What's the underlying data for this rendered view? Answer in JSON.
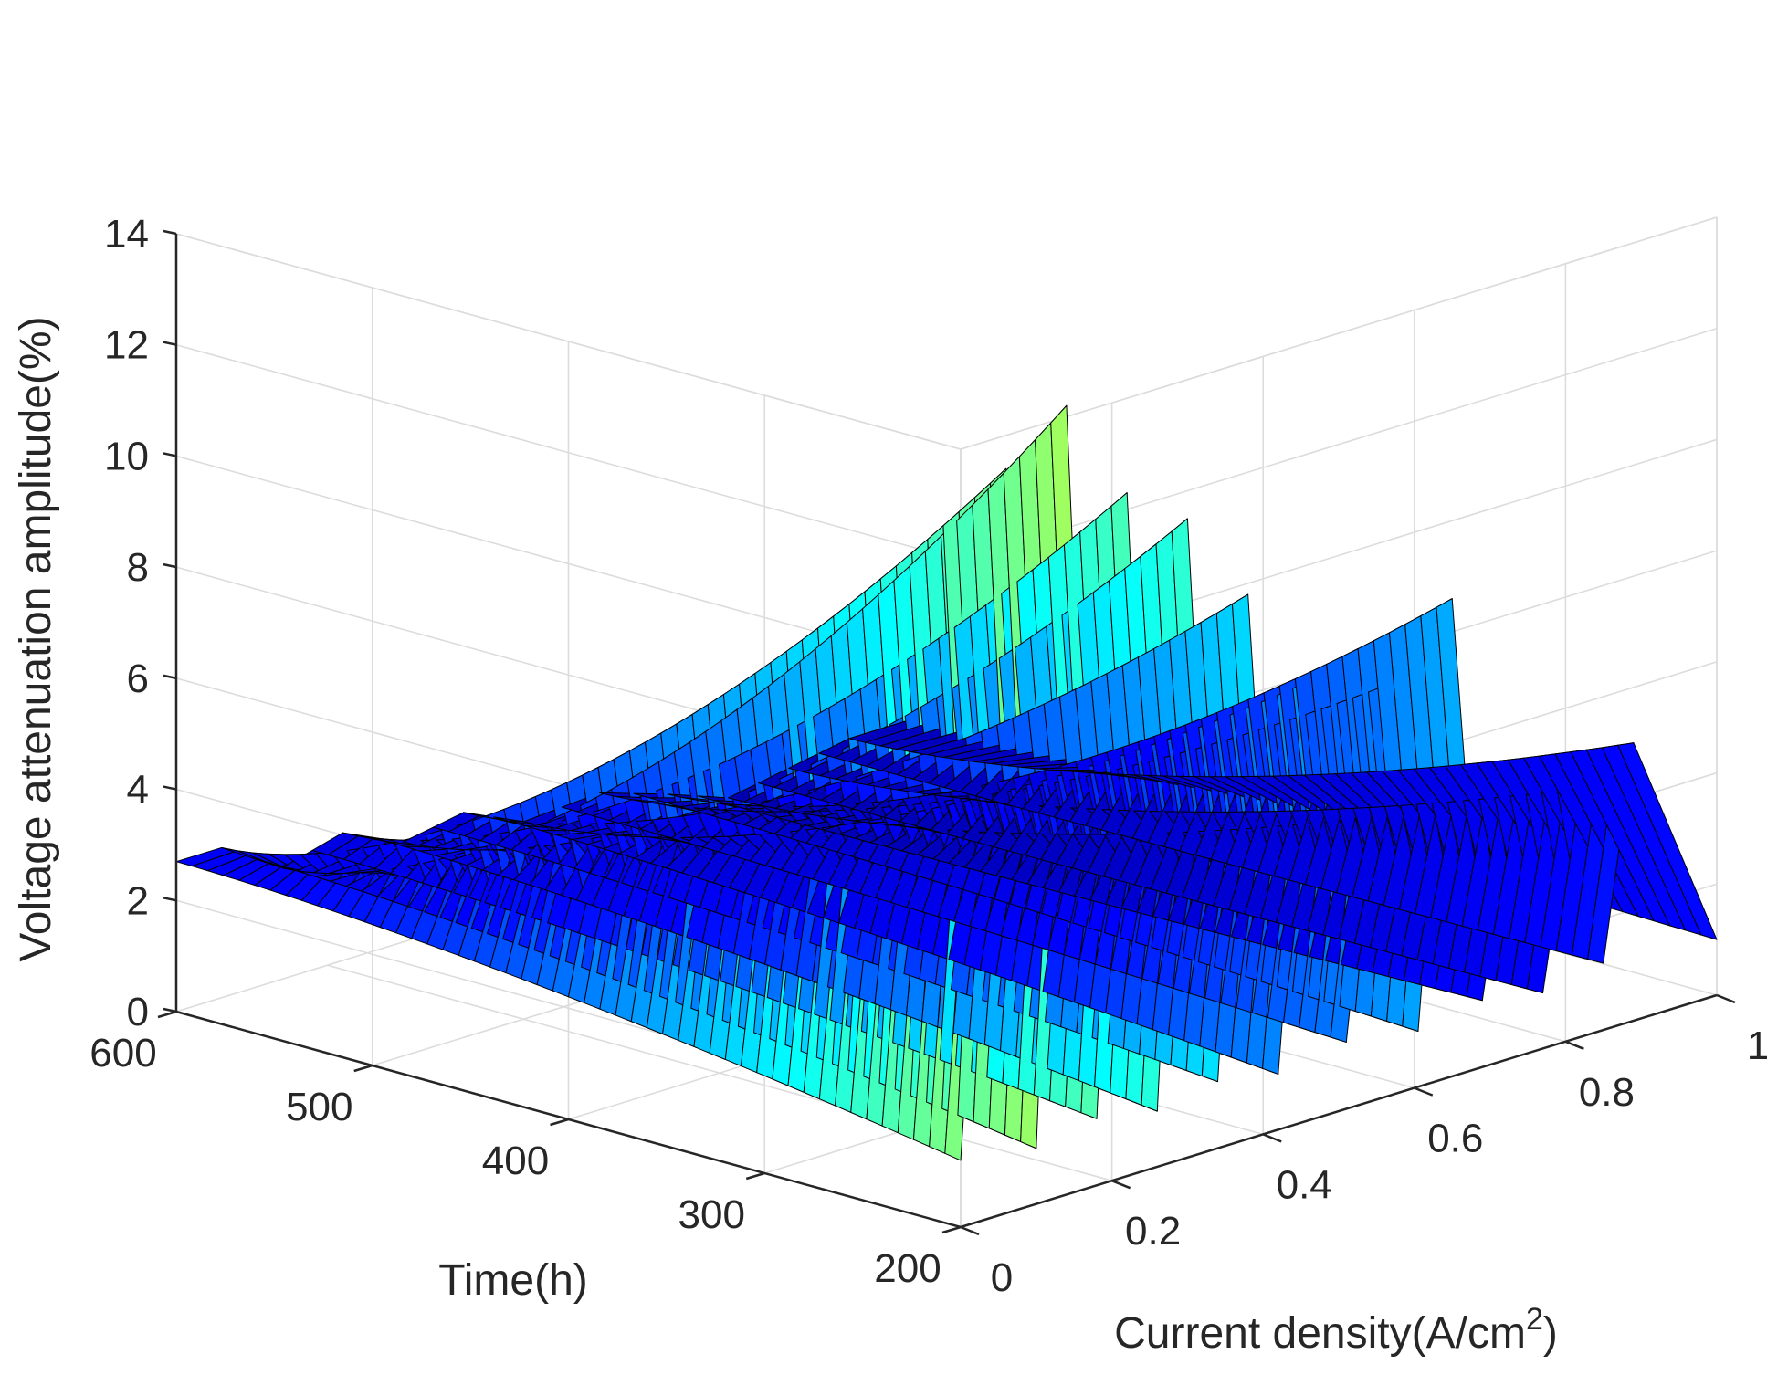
{
  "chart_data": {
    "type": "surface",
    "xlabel": "Time(h)",
    "ylabel_main": "Current density(A/cm",
    "ylabel_sup": "2",
    "ylabel_end": ")",
    "zlabel": "Voltage attenuation amplitude(%)",
    "x_ticks": [
      "200",
      "300",
      "400",
      "500",
      "600"
    ],
    "y_ticks": [
      "0",
      "0.2",
      "0.4",
      "0.6",
      "0.8",
      "1"
    ],
    "z_ticks": [
      "0",
      "2",
      "4",
      "6",
      "8",
      "10",
      "12",
      "14"
    ],
    "xlim": [
      200,
      600
    ],
    "ylim": [
      0,
      1
    ],
    "zlim": [
      0,
      14
    ],
    "grid": true,
    "colormap": "jet",
    "colormap_stops": [
      "#00008f",
      "#0000ff",
      "#00ffff",
      "#ffff00",
      "#ff0000",
      "#800000"
    ],
    "time": [
      200,
      600
    ],
    "current_density": [
      0.0,
      0.05,
      0.1,
      0.15,
      0.2,
      0.25,
      0.3,
      0.35,
      0.4,
      0.45,
      0.5,
      0.55,
      0.6,
      0.65,
      0.7,
      0.75,
      0.8,
      0.85,
      0.9,
      0.95,
      1.0
    ],
    "ridge_current_density": [
      0.06,
      0.14,
      0.22,
      0.3,
      0.38,
      0.46,
      0.56,
      0.65,
      0.73,
      0.81,
      0.89
    ],
    "ridge_height_at_200h": [
      13.4,
      14.2,
      12.3,
      11.5,
      9.8,
      7.9,
      7.4,
      8.6,
      4.7,
      4.5,
      5.0
    ],
    "valley_height_at_200h": 1.0,
    "height_at_600h": [
      2.7,
      2.0,
      2.3,
      1.8,
      2.0,
      1.5,
      1.6,
      1.2,
      0.8,
      1.0,
      1.2
    ]
  }
}
